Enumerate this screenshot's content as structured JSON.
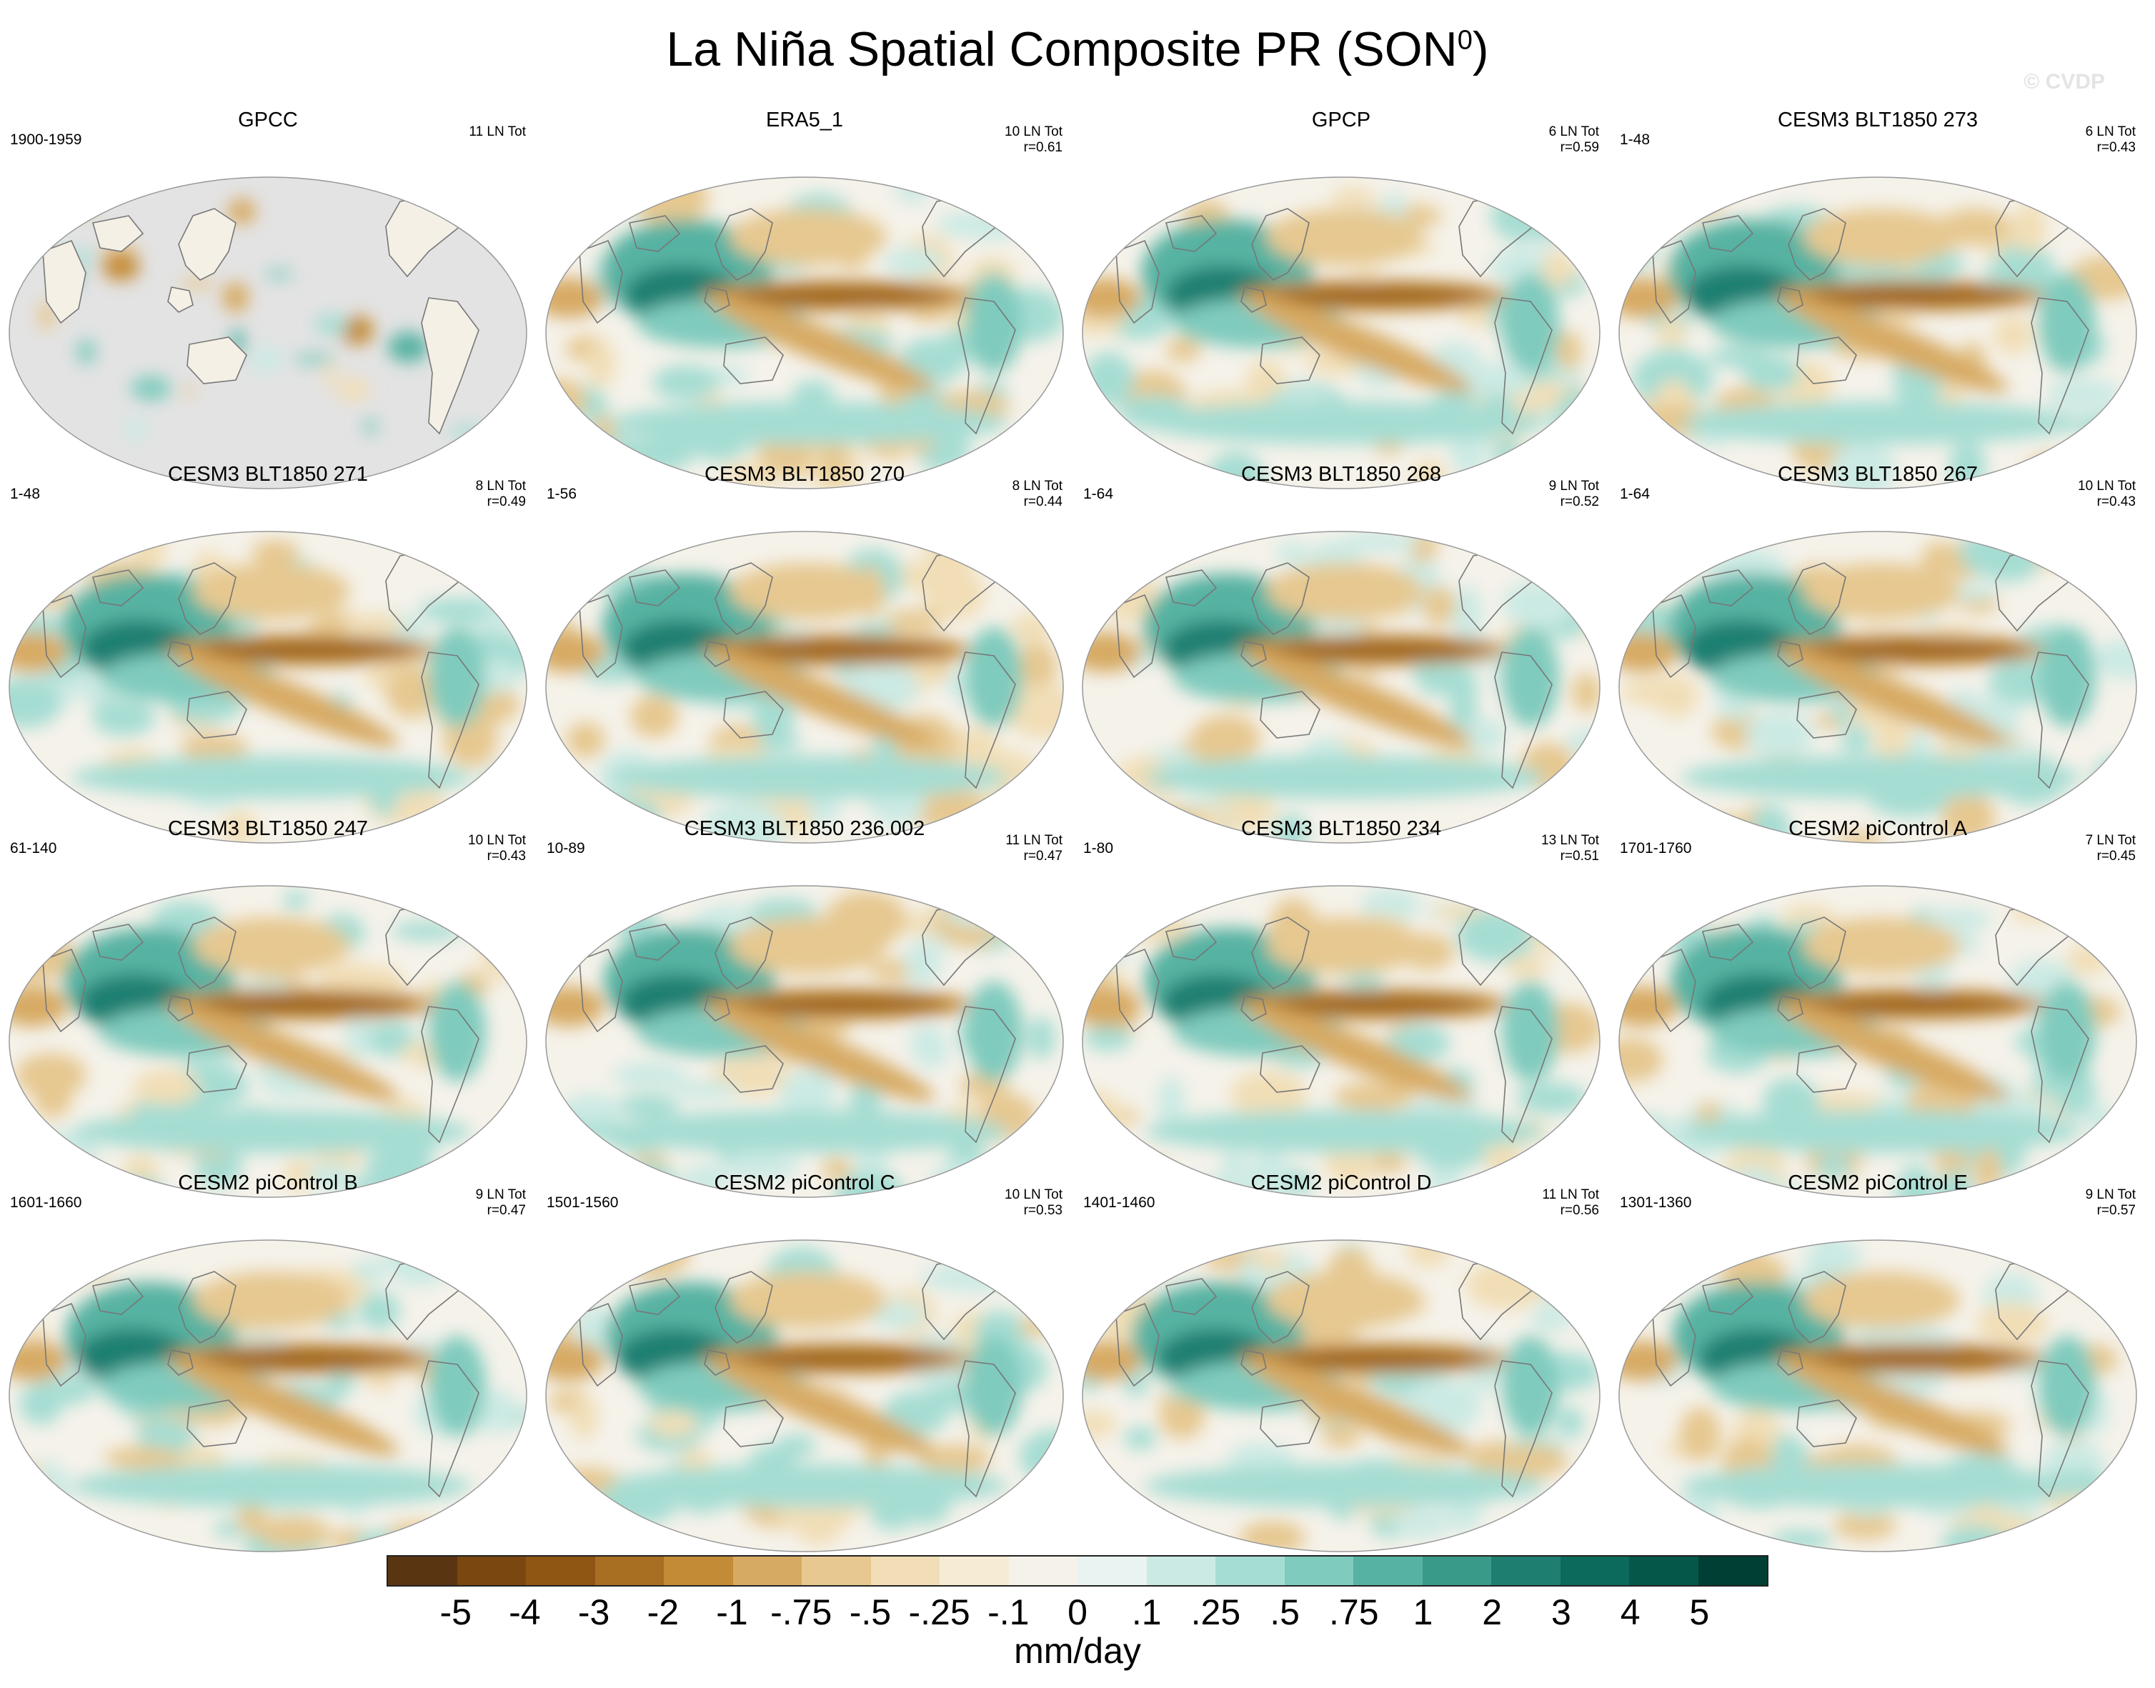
{
  "figure": {
    "title_main": "La Niña Spatial Composite PR (SON",
    "title_sup": "0",
    "title_close": ")",
    "watermark": "© CVDP"
  },
  "colors": {
    "ocean_gray": "#e3e3e3",
    "coast": "#777777",
    "scale": [
      "#5a3512",
      "#7a4710",
      "#8f5513",
      "#a86e22",
      "#c48b36",
      "#d7aa63",
      "#e6c890",
      "#f1deb6",
      "#f6ecd4",
      "#f5f2ea",
      "#e9f3f1",
      "#cceae4",
      "#a6ddd3",
      "#7fcbbd",
      "#56b2a2",
      "#3a9a8a",
      "#1e7f71",
      "#0c6a5c",
      "#05574a",
      "#003f33"
    ]
  },
  "legend": {
    "labels": [
      "-5",
      "-4",
      "-3",
      "-2",
      "-1",
      "-.75",
      "-.5",
      "-.25",
      "-.1",
      "0",
      ".1",
      ".25",
      ".5",
      ".75",
      "1",
      "2",
      "3",
      "4",
      "5"
    ],
    "units": "mm/day"
  },
  "panels": [
    {
      "title": "GPCC",
      "left": "1900-1959",
      "right1": "11 LN Tot",
      "right2": ""
    },
    {
      "title": "ERA5_1",
      "left": "",
      "right1": "10 LN Tot",
      "right2": "r=0.61"
    },
    {
      "title": "GPCP",
      "left": "",
      "right1": "6 LN Tot",
      "right2": "r=0.59"
    },
    {
      "title": "CESM3 BLT1850 273",
      "left": "1-48",
      "right1": "6 LN Tot",
      "right2": "r=0.43"
    },
    {
      "title": "CESM3 BLT1850 271",
      "left": "1-48",
      "right1": "8 LN Tot",
      "right2": "r=0.49"
    },
    {
      "title": "CESM3 BLT1850 270",
      "left": "1-56",
      "right1": "8 LN Tot",
      "right2": "r=0.44"
    },
    {
      "title": "CESM3 BLT1850 268",
      "left": "1-64",
      "right1": "9 LN Tot",
      "right2": "r=0.52"
    },
    {
      "title": "CESM3 BLT1850 267",
      "left": "1-64",
      "right1": "10 LN Tot",
      "right2": "r=0.43"
    },
    {
      "title": "CESM3 BLT1850 247",
      "left": "61-140",
      "right1": "10 LN Tot",
      "right2": "r=0.43"
    },
    {
      "title": "CESM3 BLT1850 236.002",
      "left": "10-89",
      "right1": "11 LN Tot",
      "right2": "r=0.47"
    },
    {
      "title": "CESM3 BLT1850 234",
      "left": "1-80",
      "right1": "13 LN Tot",
      "right2": "r=0.51"
    },
    {
      "title": "CESM2 piControl A",
      "left": "1701-1760",
      "right1": "7 LN Tot",
      "right2": "r=0.45"
    },
    {
      "title": "CESM2 piControl B",
      "left": "1601-1660",
      "right1": "9 LN Tot",
      "right2": "r=0.47"
    },
    {
      "title": "CESM2 piControl C",
      "left": "1501-1560",
      "right1": "10 LN Tot",
      "right2": "r=0.53"
    },
    {
      "title": "CESM2 piControl D",
      "left": "1401-1460",
      "right1": "11 LN Tot",
      "right2": "r=0.56"
    },
    {
      "title": "CESM2 piControl E",
      "left": "1301-1360",
      "right1": "9 LN Tot",
      "right2": "r=0.57"
    }
  ]
}
